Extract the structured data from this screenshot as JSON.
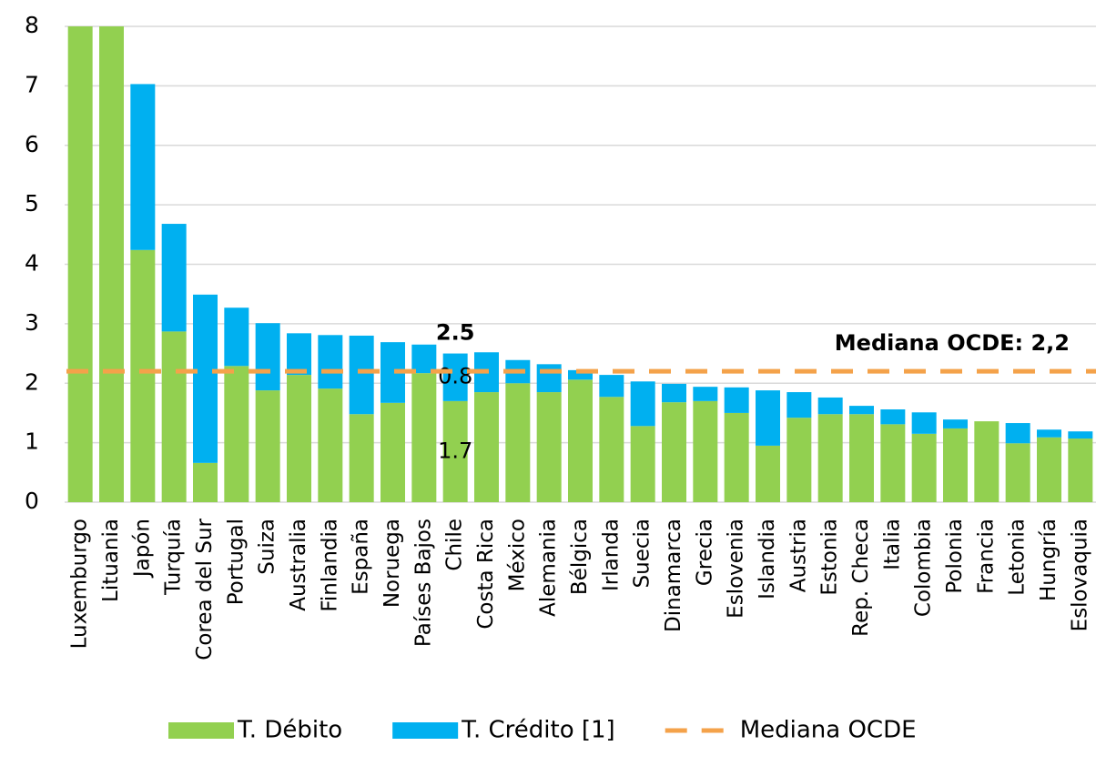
{
  "chart_data": {
    "type": "stacked_bar",
    "categories": [
      "Luxemburgo",
      "Lituania",
      "Japón",
      "Turquía",
      "Corea del Sur",
      "Portugal",
      "Suiza",
      "Australia",
      "Finlandia",
      "España",
      "Noruega",
      "Países Bajos",
      "Chile",
      "Costa Rica",
      "México",
      "Alemania",
      "Bélgica",
      "Irlanda",
      "Suecia",
      "Dinamarca",
      "Grecia",
      "Eslovenia",
      "Islandia",
      "Austria",
      "Estonia",
      "Rep. Checa",
      "Italia",
      "Colombia",
      "Polonia",
      "Francia",
      "Letonia",
      "Hungría",
      "Eslovaquia"
    ],
    "series": [
      {
        "name": "T. Débito",
        "color": "#92d050",
        "values": [
          8,
          8,
          4.24,
          2.87,
          0.66,
          2.29,
          1.88,
          2.14,
          1.91,
          1.48,
          1.67,
          2.17,
          1.7,
          1.85,
          2.0,
          1.85,
          2.06,
          1.77,
          1.28,
          1.68,
          1.7,
          1.5,
          0.95,
          1.42,
          1.48,
          1.48,
          1.31,
          1.15,
          1.24,
          1.36,
          0.99,
          1.09,
          1.07
        ],
        "value_labels": [
          null,
          null,
          null,
          null,
          null,
          null,
          null,
          null,
          null,
          null,
          null,
          null,
          "1.7",
          null,
          null,
          null,
          null,
          null,
          null,
          null,
          null,
          null,
          null,
          null,
          null,
          null,
          null,
          null,
          null,
          null,
          null,
          null,
          null
        ]
      },
      {
        "name": "T. Crédito [1]",
        "color": "#00b0f0",
        "values": [
          0,
          0,
          2.79,
          1.81,
          2.83,
          0.98,
          1.13,
          0.7,
          0.9,
          1.32,
          1.02,
          0.48,
          0.8,
          0.67,
          0.39,
          0.47,
          0.16,
          0.37,
          0.75,
          0.31,
          0.24,
          0.43,
          0.93,
          0.43,
          0.28,
          0.14,
          0.25,
          0.36,
          0.15,
          0,
          0.34,
          0.13,
          0.12
        ],
        "value_labels": [
          null,
          null,
          null,
          null,
          null,
          null,
          null,
          null,
          null,
          null,
          null,
          null,
          "0.8",
          null,
          null,
          null,
          null,
          null,
          null,
          null,
          null,
          null,
          null,
          null,
          null,
          null,
          null,
          null,
          null,
          null,
          null,
          null,
          null
        ]
      }
    ],
    "annotations": [
      {
        "text": "2.5",
        "x": "Chile",
        "y": 2.5
      }
    ],
    "median": {
      "name": "Mediana OCDE",
      "label": "Mediana OCDE: 2,2",
      "value": 2.2,
      "color": "#f4a24a"
    },
    "ylim": [
      0,
      8
    ],
    "yticks": [
      0,
      1,
      2,
      3,
      4,
      5,
      6,
      7,
      8
    ],
    "grid": true
  }
}
